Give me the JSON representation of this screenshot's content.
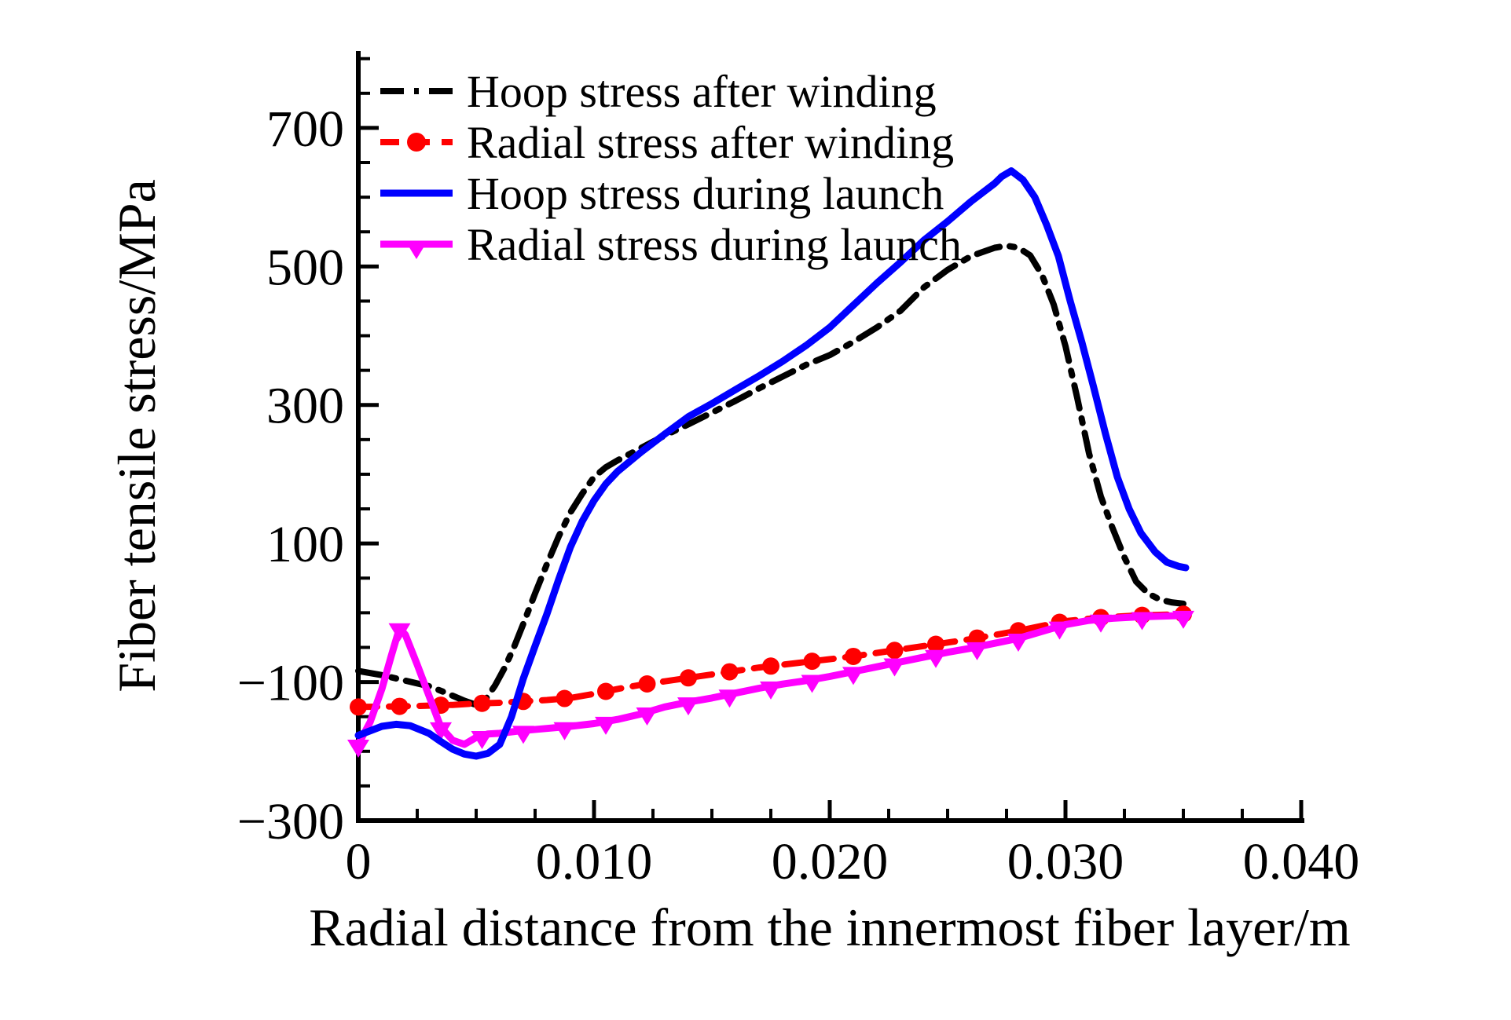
{
  "figure": {
    "background": "#ffffff"
  },
  "chart_data": {
    "type": "line",
    "title": "",
    "xlabel": "Radial distance from the innermost fiber layer/m",
    "ylabel": "Fiber tensile stress/MPa",
    "xlim": [
      0,
      0.04
    ],
    "ylim": [
      -300,
      811
    ],
    "grid": false,
    "legend_position": "upper-left",
    "x_major_ticks": {
      "values": [
        0,
        0.01,
        0.02,
        0.03,
        0.04
      ],
      "labels": [
        "0",
        "0.010",
        "0.020",
        "0.030",
        "0.040"
      ]
    },
    "x_minor_step": 0.0025,
    "y_major_ticks": {
      "values": [
        700,
        500,
        300,
        100,
        -100,
        -300
      ],
      "labels": [
        "700",
        "500",
        "300",
        "100",
        "−100",
        "−300"
      ]
    },
    "y_minor_step": 50,
    "series": [
      {
        "name": "Hoop stress after winding",
        "color": "#000000",
        "line": "dashdot",
        "marker": "none",
        "points": [
          [
            0,
            -84
          ],
          [
            0.001,
            -90
          ],
          [
            0.002,
            -98
          ],
          [
            0.003,
            -106
          ],
          [
            0.0036,
            -114
          ],
          [
            0.0045,
            -127
          ],
          [
            0.005,
            -133
          ],
          [
            0.0054,
            -125
          ],
          [
            0.0058,
            -105
          ],
          [
            0.0062,
            -80
          ],
          [
            0.0066,
            -50
          ],
          [
            0.007,
            -16
          ],
          [
            0.0075,
            28
          ],
          [
            0.008,
            70
          ],
          [
            0.0085,
            110
          ],
          [
            0.009,
            145
          ],
          [
            0.0095,
            172
          ],
          [
            0.01,
            196
          ],
          [
            0.0105,
            210
          ],
          [
            0.011,
            220
          ],
          [
            0.012,
            238
          ],
          [
            0.013,
            256
          ],
          [
            0.014,
            272
          ],
          [
            0.015,
            289
          ],
          [
            0.016,
            306
          ],
          [
            0.017,
            324
          ],
          [
            0.018,
            341
          ],
          [
            0.019,
            358
          ],
          [
            0.02,
            372
          ],
          [
            0.021,
            391
          ],
          [
            0.022,
            412
          ],
          [
            0.023,
            436
          ],
          [
            0.024,
            470
          ],
          [
            0.025,
            495
          ],
          [
            0.026,
            515
          ],
          [
            0.027,
            527
          ],
          [
            0.0275,
            530
          ],
          [
            0.028,
            527
          ],
          [
            0.0285,
            516
          ],
          [
            0.029,
            488
          ],
          [
            0.0295,
            445
          ],
          [
            0.03,
            385
          ],
          [
            0.0305,
            310
          ],
          [
            0.031,
            230
          ],
          [
            0.0315,
            168
          ],
          [
            0.032,
            122
          ],
          [
            0.0325,
            80
          ],
          [
            0.033,
            45
          ],
          [
            0.0335,
            28
          ],
          [
            0.034,
            19
          ],
          [
            0.0345,
            15
          ],
          [
            0.035,
            13
          ]
        ]
      },
      {
        "name": "Radial stress after winding",
        "color": "#ff0000",
        "line": "dashed",
        "marker": "circle",
        "marker_interval": 0.00175,
        "points": [
          [
            0,
            -136
          ],
          [
            0.002,
            -135
          ],
          [
            0.004,
            -133
          ],
          [
            0.005,
            -131
          ],
          [
            0.006,
            -130
          ],
          [
            0.007,
            -128
          ],
          [
            0.008,
            -126
          ],
          [
            0.009,
            -123
          ],
          [
            0.01,
            -117
          ],
          [
            0.011,
            -110
          ],
          [
            0.012,
            -104
          ],
          [
            0.013,
            -99
          ],
          [
            0.014,
            -94
          ],
          [
            0.015,
            -89
          ],
          [
            0.016,
            -84
          ],
          [
            0.017,
            -79
          ],
          [
            0.018,
            -75
          ],
          [
            0.019,
            -71
          ],
          [
            0.02,
            -67
          ],
          [
            0.021,
            -63
          ],
          [
            0.022,
            -58
          ],
          [
            0.023,
            -53
          ],
          [
            0.024,
            -48
          ],
          [
            0.025,
            -43
          ],
          [
            0.026,
            -38
          ],
          [
            0.027,
            -32
          ],
          [
            0.028,
            -26
          ],
          [
            0.029,
            -19
          ],
          [
            0.03,
            -12
          ],
          [
            0.0315,
            -7
          ],
          [
            0.033,
            -4
          ],
          [
            0.034,
            -3
          ],
          [
            0.035,
            -2
          ]
        ]
      },
      {
        "name": "Hoop stress during launch",
        "color": "#0000ff",
        "line": "solid",
        "marker": "none",
        "points": [
          [
            0,
            -177
          ],
          [
            0.001,
            -164
          ],
          [
            0.0016,
            -161
          ],
          [
            0.0022,
            -163
          ],
          [
            0.003,
            -174
          ],
          [
            0.0035,
            -186
          ],
          [
            0.004,
            -197
          ],
          [
            0.0045,
            -204
          ],
          [
            0.005,
            -207
          ],
          [
            0.0055,
            -203
          ],
          [
            0.006,
            -190
          ],
          [
            0.0065,
            -150
          ],
          [
            0.007,
            -95
          ],
          [
            0.0075,
            -48
          ],
          [
            0.008,
            -2
          ],
          [
            0.0085,
            48
          ],
          [
            0.009,
            95
          ],
          [
            0.0095,
            132
          ],
          [
            0.01,
            162
          ],
          [
            0.0105,
            186
          ],
          [
            0.011,
            204
          ],
          [
            0.012,
            232
          ],
          [
            0.013,
            258
          ],
          [
            0.014,
            283
          ],
          [
            0.015,
            302
          ],
          [
            0.016,
            322
          ],
          [
            0.017,
            342
          ],
          [
            0.018,
            363
          ],
          [
            0.019,
            386
          ],
          [
            0.02,
            412
          ],
          [
            0.021,
            444
          ],
          [
            0.022,
            476
          ],
          [
            0.023,
            506
          ],
          [
            0.024,
            538
          ],
          [
            0.025,
            565
          ],
          [
            0.026,
            594
          ],
          [
            0.027,
            620
          ],
          [
            0.0273,
            630
          ],
          [
            0.0277,
            638
          ],
          [
            0.0282,
            625
          ],
          [
            0.0287,
            600
          ],
          [
            0.0292,
            560
          ],
          [
            0.0297,
            515
          ],
          [
            0.0302,
            450
          ],
          [
            0.0307,
            390
          ],
          [
            0.0312,
            325
          ],
          [
            0.0317,
            258
          ],
          [
            0.0322,
            196
          ],
          [
            0.0327,
            150
          ],
          [
            0.0332,
            115
          ],
          [
            0.0338,
            88
          ],
          [
            0.0343,
            73
          ],
          [
            0.0348,
            67
          ],
          [
            0.0351,
            65
          ]
        ]
      },
      {
        "name": "Radial stress during launch",
        "color": "#ff00ff",
        "line": "solid",
        "marker": "triangle-down",
        "marker_interval": 0.00175,
        "points": [
          [
            0,
            -190
          ],
          [
            0.0005,
            -158
          ],
          [
            0.001,
            -110
          ],
          [
            0.0014,
            -62
          ],
          [
            0.00175,
            -22
          ],
          [
            0.002,
            -32
          ],
          [
            0.0025,
            -75
          ],
          [
            0.003,
            -120
          ],
          [
            0.0035,
            -165
          ],
          [
            0.004,
            -184
          ],
          [
            0.0045,
            -190
          ],
          [
            0.005,
            -180
          ],
          [
            0.0055,
            -175
          ],
          [
            0.006,
            -174
          ],
          [
            0.007,
            -170
          ],
          [
            0.008,
            -167
          ],
          [
            0.009,
            -164
          ],
          [
            0.01,
            -160
          ],
          [
            0.011,
            -154
          ],
          [
            0.012,
            -146
          ],
          [
            0.013,
            -136
          ],
          [
            0.014,
            -129
          ],
          [
            0.015,
            -123
          ],
          [
            0.016,
            -116
          ],
          [
            0.017,
            -109
          ],
          [
            0.018,
            -103
          ],
          [
            0.019,
            -98
          ],
          [
            0.02,
            -92
          ],
          [
            0.021,
            -85
          ],
          [
            0.022,
            -78
          ],
          [
            0.023,
            -71
          ],
          [
            0.024,
            -64
          ],
          [
            0.025,
            -57
          ],
          [
            0.026,
            -51
          ],
          [
            0.027,
            -44
          ],
          [
            0.028,
            -37
          ],
          [
            0.029,
            -27
          ],
          [
            0.03,
            -17
          ],
          [
            0.031,
            -11
          ],
          [
            0.032,
            -8
          ],
          [
            0.033,
            -6
          ],
          [
            0.034,
            -5
          ],
          [
            0.035,
            -4
          ]
        ]
      }
    ]
  }
}
